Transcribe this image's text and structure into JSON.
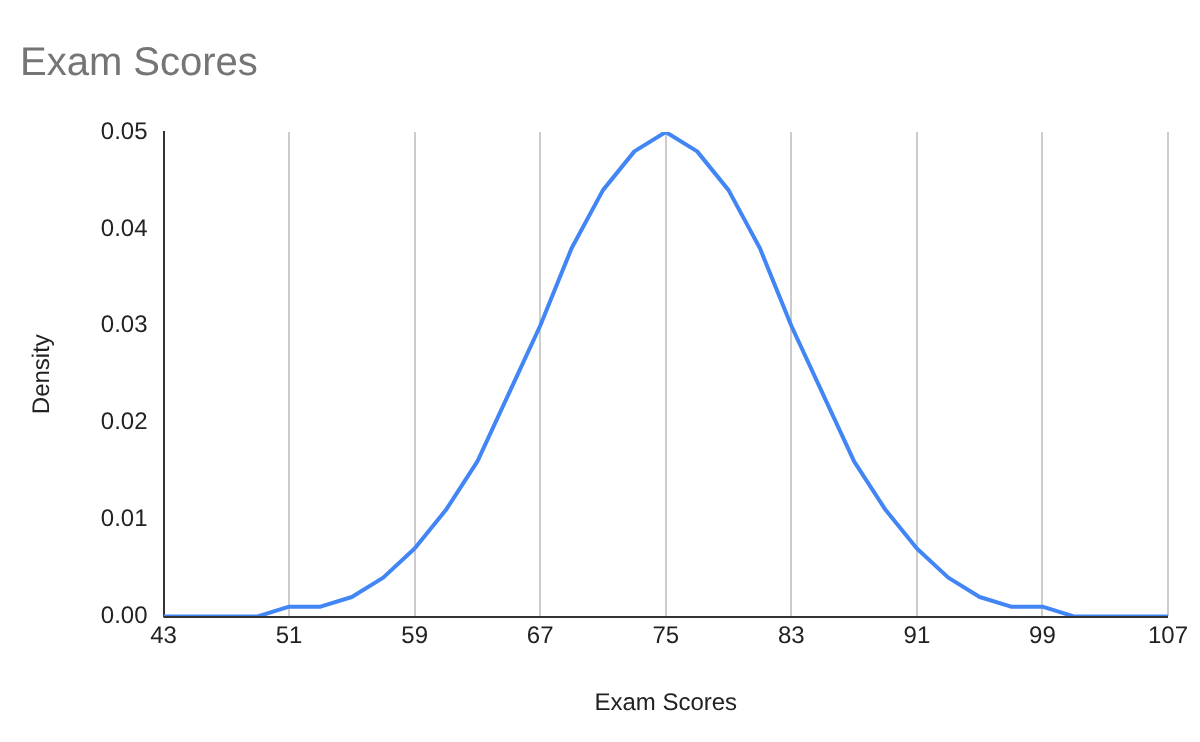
{
  "chart_data": {
    "type": "line",
    "title": "Exam Scores",
    "xlabel": "Exam Scores",
    "ylabel": "Density",
    "x": [
      43,
      45,
      47,
      49,
      51,
      53,
      55,
      57,
      59,
      61,
      63,
      65,
      67,
      69,
      71,
      73,
      75,
      77,
      79,
      81,
      83,
      85,
      87,
      89,
      91,
      93,
      95,
      97,
      99,
      101,
      103,
      105,
      107
    ],
    "series": [
      {
        "color": "#4285f4",
        "values": [
          0.0,
          0.0,
          0.0,
          0.0,
          0.001,
          0.001,
          0.002,
          0.004,
          0.007,
          0.011,
          0.016,
          0.023,
          0.03,
          0.038,
          0.044,
          0.048,
          0.05,
          0.048,
          0.044,
          0.038,
          0.03,
          0.023,
          0.016,
          0.011,
          0.007,
          0.004,
          0.002,
          0.001,
          0.001,
          0.0,
          0.0,
          0.0,
          0.0
        ]
      }
    ],
    "xlim": [
      43,
      107
    ],
    "xticks": [
      43,
      51,
      59,
      67,
      75,
      83,
      91,
      99,
      107
    ],
    "ylim": [
      0,
      0.05
    ],
    "yticks": [
      {
        "value": 0,
        "label": "0.00"
      },
      {
        "value": 0.01,
        "label": "0.01"
      },
      {
        "value": 0.02,
        "label": "0.02"
      },
      {
        "value": 0.03,
        "label": "0.03"
      },
      {
        "value": 0.04,
        "label": "0.04"
      },
      {
        "value": 0.05,
        "label": "0.05"
      }
    ],
    "grid": "x",
    "legend": false,
    "marker": "none",
    "line_style": "solid"
  }
}
